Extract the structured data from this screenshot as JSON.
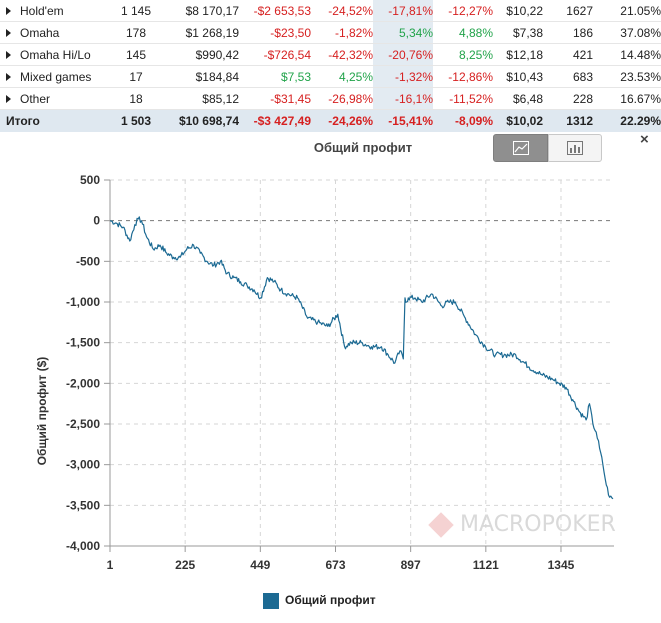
{
  "table": {
    "rows": [
      {
        "name": "Hold'em",
        "hands": "1 145",
        "won": "$8 170,17",
        "net": "-$2 653,53",
        "roi": "-24,52%",
        "c6": "-17,81%",
        "c7": "-12,27%",
        "avg": "$10,22",
        "n": "1627",
        "pct": "21.05%",
        "net_s": "neg",
        "roi_s": "neg",
        "c6_s": "neg",
        "c7_s": "neg"
      },
      {
        "name": "Omaha",
        "hands": "178",
        "won": "$1 268,19",
        "net": "-$23,50",
        "roi": "-1,82%",
        "c6": "5,34%",
        "c7": "4,88%",
        "avg": "$7,38",
        "n": "186",
        "pct": "37.08%",
        "net_s": "neg",
        "roi_s": "neg",
        "c6_s": "pos",
        "c7_s": "pos"
      },
      {
        "name": "Omaha Hi/Lo",
        "hands": "145",
        "won": "$990,42",
        "net": "-$726,54",
        "roi": "-42,32%",
        "c6": "-20,76%",
        "c7": "8,25%",
        "avg": "$12,18",
        "n": "421",
        "pct": "14.48%",
        "net_s": "neg",
        "roi_s": "neg",
        "c6_s": "neg",
        "c7_s": "pos"
      },
      {
        "name": "Mixed games",
        "hands": "17",
        "won": "$184,84",
        "net": "$7,53",
        "roi": "4,25%",
        "c6": "-1,32%",
        "c7": "-12,86%",
        "avg": "$10,43",
        "n": "683",
        "pct": "23.53%",
        "net_s": "pos",
        "roi_s": "pos",
        "c6_s": "neg",
        "c7_s": "neg"
      },
      {
        "name": "Other",
        "hands": "18",
        "won": "$85,12",
        "net": "-$31,45",
        "roi": "-26,98%",
        "c6": "-16,1%",
        "c7": "-11,52%",
        "avg": "$6,48",
        "n": "228",
        "pct": "16.67%",
        "net_s": "neg",
        "roi_s": "neg",
        "c6_s": "neg",
        "c7_s": "neg"
      }
    ],
    "total": {
      "name": "Итого",
      "hands": "1 503",
      "won": "$10 698,74",
      "net": "-$3 427,49",
      "roi": "-24,26%",
      "c6": "-15,41%",
      "c7": "-8,09%",
      "avg": "$10,02",
      "n": "1312",
      "pct": "22.29%"
    }
  },
  "chart": {
    "close_symbol": "×",
    "watermark": "MACROPOKER",
    "line_color": "#1c6a93",
    "buttons": {
      "line": "line-chart-icon",
      "bar": "bar-chart-icon"
    }
  },
  "chart_data": {
    "type": "line",
    "title": "Общий профит",
    "ylabel": "Общий профит ($)",
    "xlabel": "",
    "ylim": [
      -4000,
      500
    ],
    "xlim": [
      1,
      1503
    ],
    "yticks": [
      "500",
      "0",
      "-500",
      "-1,000",
      "-1,500",
      "-2,000",
      "-2,500",
      "-3,000",
      "-3,500",
      "-4,000"
    ],
    "xticks": [
      "1",
      "225",
      "449",
      "673",
      "897",
      "1121",
      "1345"
    ],
    "grid": true,
    "legend": "bottom-center",
    "series": [
      {
        "name": "Общий профит",
        "x": [
          1,
          20,
          40,
          60,
          75,
          85,
          95,
          110,
          130,
          150,
          170,
          190,
          210,
          230,
          250,
          270,
          290,
          310,
          330,
          350,
          370,
          390,
          410,
          430,
          450,
          470,
          490,
          510,
          530,
          560,
          590,
          620,
          650,
          680,
          700,
          720,
          750,
          780,
          810,
          830,
          850,
          865,
          875,
          880,
          885,
          890,
          910,
          930,
          960,
          990,
          1010,
          1030,
          1060,
          1090,
          1120,
          1150,
          1180,
          1210,
          1250,
          1290,
          1320,
          1340,
          1360,
          1380,
          1400,
          1420,
          1430,
          1440,
          1450,
          1460,
          1470,
          1480,
          1490,
          1500
        ],
        "y": [
          0,
          -30,
          -80,
          -250,
          -50,
          20,
          0,
          -200,
          -350,
          -300,
          -400,
          -450,
          -450,
          -350,
          -300,
          -400,
          -500,
          -550,
          -500,
          -650,
          -700,
          -750,
          -800,
          -850,
          -950,
          -700,
          -750,
          -850,
          -900,
          -950,
          -1200,
          -1250,
          -1300,
          -1150,
          -1550,
          -1500,
          -1500,
          -1550,
          -1550,
          -1650,
          -1750,
          -1600,
          -1700,
          -950,
          -1000,
          -950,
          -950,
          -1000,
          -900,
          -1050,
          -1000,
          -1000,
          -1200,
          -1400,
          -1550,
          -1650,
          -1650,
          -1650,
          -1800,
          -1900,
          -1950,
          -2000,
          -2050,
          -2200,
          -2350,
          -2450,
          -2250,
          -2500,
          -2600,
          -2800,
          -3000,
          -3250,
          -3400,
          -3420
        ]
      }
    ]
  }
}
